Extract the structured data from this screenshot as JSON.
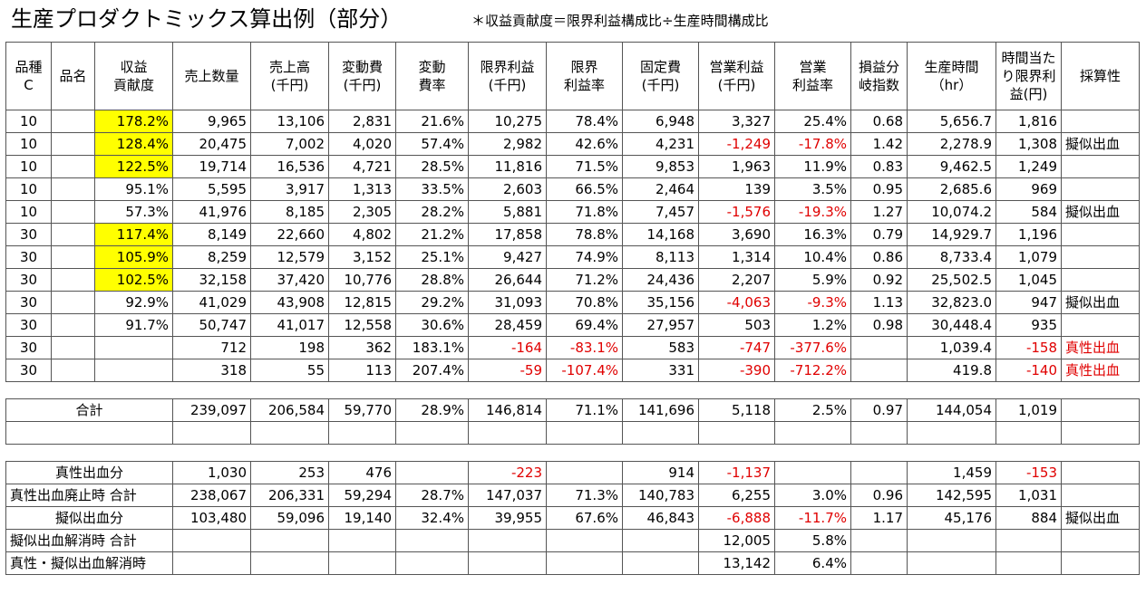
{
  "title": "生産プロダクトミックス算出例（部分）",
  "note": "＊収益貢献度＝限界利益構成比÷生産時間構成比",
  "headers": [
    "品種C",
    "品名",
    "収益貢献度",
    "売上数量",
    "売上高(千円)",
    "変動費(千円)",
    "変動費率",
    "限界利益(千円)",
    "限界利益率",
    "固定費(千円)",
    "営業利益(千円)",
    "営業利益率",
    "損益分岐指数",
    "生産時間(hr)",
    "時間当たり限界利益(円)",
    "採算性"
  ],
  "header_lines": [
    [
      "品種",
      "C"
    ],
    [
      "品名"
    ],
    [
      "収益",
      "貢献度"
    ],
    [
      "売上数量"
    ],
    [
      "売上高",
      "(千円)"
    ],
    [
      "変動費",
      "(千円)"
    ],
    [
      "変動",
      "費率"
    ],
    [
      "限界利益",
      "(千円)"
    ],
    [
      "限界",
      "利益率"
    ],
    [
      "固定費",
      "(千円)"
    ],
    [
      "営業利益",
      "(千円)"
    ],
    [
      "営業",
      "利益率"
    ],
    [
      "損益分",
      "岐指数"
    ],
    [
      "生産時間",
      "（hr）"
    ],
    [
      "時間当た",
      "り限界利",
      "益(円)"
    ],
    [
      "採算性"
    ]
  ],
  "rows": [
    [
      "10",
      "",
      "178.2%",
      "9,965",
      "13,106",
      "2,831",
      "21.6%",
      "10,275",
      "78.4%",
      "6,948",
      "3,327",
      "25.4%",
      "0.68",
      "5,656.7",
      "1,816",
      ""
    ],
    [
      "10",
      "",
      "128.4%",
      "20,475",
      "7,002",
      "4,020",
      "57.4%",
      "2,982",
      "42.6%",
      "4,231",
      "-1,249",
      "-17.8%",
      "1.42",
      "2,278.9",
      "1,308",
      "擬似出血"
    ],
    [
      "10",
      "",
      "122.5%",
      "19,714",
      "16,536",
      "4,721",
      "28.5%",
      "11,816",
      "71.5%",
      "9,853",
      "1,963",
      "11.9%",
      "0.83",
      "9,462.5",
      "1,249",
      ""
    ],
    [
      "10",
      "",
      "95.1%",
      "5,595",
      "3,917",
      "1,313",
      "33.5%",
      "2,603",
      "66.5%",
      "2,464",
      "139",
      "3.5%",
      "0.95",
      "2,685.6",
      "969",
      ""
    ],
    [
      "10",
      "",
      "57.3%",
      "41,976",
      "8,185",
      "2,305",
      "28.2%",
      "5,881",
      "71.8%",
      "7,457",
      "-1,576",
      "-19.3%",
      "1.27",
      "10,074.2",
      "584",
      "擬似出血"
    ],
    [
      "30",
      "",
      "117.4%",
      "8,149",
      "22,660",
      "4,802",
      "21.2%",
      "17,858",
      "78.8%",
      "14,168",
      "3,690",
      "16.3%",
      "0.79",
      "14,929.7",
      "1,196",
      ""
    ],
    [
      "30",
      "",
      "105.9%",
      "8,259",
      "12,579",
      "3,152",
      "25.1%",
      "9,427",
      "74.9%",
      "8,113",
      "1,314",
      "10.4%",
      "0.86",
      "8,733.4",
      "1,079",
      ""
    ],
    [
      "30",
      "",
      "102.5%",
      "32,158",
      "37,420",
      "10,776",
      "28.8%",
      "26,644",
      "71.2%",
      "24,436",
      "2,207",
      "5.9%",
      "0.92",
      "25,502.5",
      "1,045",
      ""
    ],
    [
      "30",
      "",
      "92.9%",
      "41,029",
      "43,908",
      "12,815",
      "29.2%",
      "31,093",
      "70.8%",
      "35,156",
      "-4,063",
      "-9.3%",
      "1.13",
      "32,823.0",
      "947",
      "擬似出血"
    ],
    [
      "30",
      "",
      "91.7%",
      "50,747",
      "41,017",
      "12,558",
      "30.6%",
      "28,459",
      "69.4%",
      "27,957",
      "503",
      "1.2%",
      "0.98",
      "30,448.4",
      "935",
      ""
    ],
    [
      "30",
      "",
      "",
      "712",
      "198",
      "362",
      "183.1%",
      "-164",
      "-83.1%",
      "583",
      "-747",
      "-377.6%",
      "",
      "1,039.4",
      "-158",
      "真性出血"
    ],
    [
      "30",
      "",
      "",
      "318",
      "55",
      "113",
      "207.4%",
      "-59",
      "-107.4%",
      "331",
      "-390",
      "-712.2%",
      "",
      "419.8",
      "-140",
      "真性出血"
    ]
  ],
  "highlighted_rows": [
    0,
    1,
    2,
    5,
    6,
    7
  ],
  "total": {
    "label": "合計",
    "values": [
      "239,097",
      "206,584",
      "59,770",
      "28.9%",
      "146,814",
      "71.1%",
      "141,696",
      "5,118",
      "2.5%",
      "0.97",
      "144,054",
      "1,019",
      ""
    ]
  },
  "summary": [
    {
      "label": "真性出血分",
      "values": [
        "1,030",
        "253",
        "476",
        "",
        "-223",
        "",
        "914",
        "-1,137",
        "",
        "",
        "1,459",
        "-153",
        ""
      ]
    },
    {
      "label": "真性出血廃止時 合計",
      "values": [
        "238,067",
        "206,331",
        "59,294",
        "28.7%",
        "147,037",
        "71.3%",
        "140,783",
        "6,255",
        "3.0%",
        "0.96",
        "142,595",
        "1,031",
        ""
      ]
    },
    {
      "label": "擬似出血分",
      "values": [
        "103,480",
        "59,096",
        "19,140",
        "32.4%",
        "39,955",
        "67.6%",
        "46,843",
        "-6,888",
        "-11.7%",
        "1.17",
        "45,176",
        "884",
        "擬似出血"
      ]
    },
    {
      "label": "擬似出血解消時 合計",
      "values": [
        "",
        "",
        "",
        "",
        "",
        "",
        "",
        "12,005",
        "5.8%",
        "",
        "",
        "",
        ""
      ]
    },
    {
      "label": "真性・擬似出血解消時",
      "values": [
        "",
        "",
        "",
        "",
        "",
        "",
        "",
        "13,142",
        "6.4%",
        "",
        "",
        "",
        ""
      ]
    }
  ],
  "colors": {
    "negative": "#e00000",
    "highlight": "#ffff00",
    "border": "#555555"
  }
}
